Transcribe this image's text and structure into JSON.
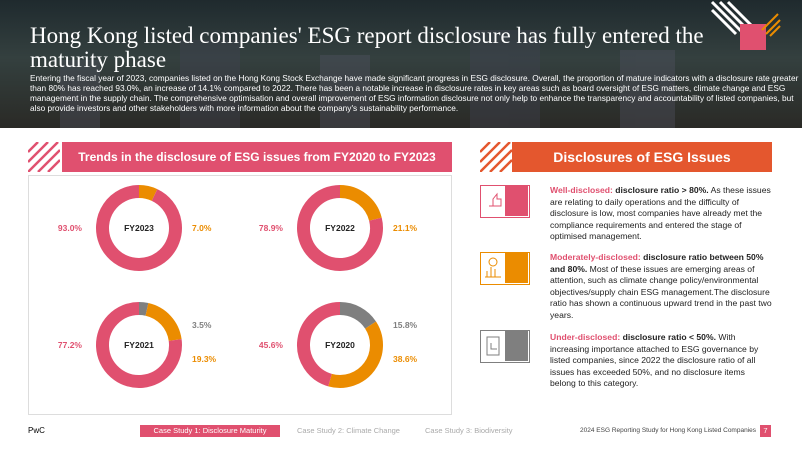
{
  "header": {
    "title": "Hong Kong listed companies' ESG report  disclosure has fully entered the maturity phase",
    "body": "Entering the fiscal year of 2023, companies listed on the Hong Kong Stock Exchange have made significant progress in ESG disclosure. Overall, the proportion of mature indicators with a disclosure rate greater than 80% has reached 93.0%, an increase of 14.1% compared to 2022. There has been a notable increase in disclosure rates in key areas such as board oversight of ESG matters, climate change and ESG management in the supply chain. The comprehensive optimisation and overall improvement of ESG information disclosure not only help to enhance the transparency and accountability of listed companies, but also provide investors and other stakeholders with more information about the company's sustainability performance."
  },
  "trends": {
    "title": "Trends in the disclosure of ESG issues from FY2020 to FY2023"
  },
  "chart_data": [
    {
      "type": "pie",
      "donut": true,
      "title": "FY2023",
      "values": [
        93.0,
        7.0
      ],
      "value_labels": [
        "93.0%",
        "7.0%"
      ],
      "colors": [
        "#e0506f",
        "#eb8c00"
      ]
    },
    {
      "type": "pie",
      "donut": true,
      "title": "FY2022",
      "values": [
        78.9,
        21.1
      ],
      "value_labels": [
        "78.9%",
        "21.1%"
      ],
      "colors": [
        "#e0506f",
        "#eb8c00"
      ]
    },
    {
      "type": "pie",
      "donut": true,
      "title": "FY2021",
      "values": [
        77.2,
        19.3,
        3.5
      ],
      "value_labels": [
        "77.2%",
        "19.3%",
        "3.5%"
      ],
      "colors": [
        "#e0506f",
        "#eb8c00",
        "#7f7f7f"
      ]
    },
    {
      "type": "pie",
      "donut": true,
      "title": "FY2020",
      "values": [
        45.6,
        38.6,
        15.8
      ],
      "value_labels": [
        "45.6%",
        "38.6%",
        "15.8%"
      ],
      "colors": [
        "#e0506f",
        "#eb8c00",
        "#7f7f7f"
      ]
    }
  ],
  "disclosures": {
    "title": "Disclosures of ESG Issues",
    "items": [
      {
        "label": "Well-disclosed:",
        "ratio": "disclosure ratio > 80%.",
        "text": "As these issues are relating to daily operations and the difficulty of disclosure is low, most companies have already met the compliance requirements and entered the stage of optimised management."
      },
      {
        "label": "Moderately-disclosed:",
        "ratio": "disclosure ratio between 50% and 80%.",
        "text": "Most of these issues are emerging areas of attention, such as climate change policy/environmental objectives/supply chain ESG management.The disclosure ratio has shown a continuous upward trend in the past two years."
      },
      {
        "label": "Under-disclosed:",
        "ratio": "disclosure ratio < 50%.",
        "text": "With increasing importance attached to ESG governance by listed companies, since 2022 the disclosure ratio of all issues has exceeded 50%, and no disclosure items belong to this category."
      }
    ]
  },
  "footer": {
    "brand": "PwC",
    "tabs": [
      "Case Study 1: Disclosure Maturity",
      "Case Study 2: Climate Change",
      "Case Study 3: Biodiversity"
    ],
    "report": "2024 ESG Reporting Study for Hong Kong Listed Companies",
    "page": "7"
  }
}
